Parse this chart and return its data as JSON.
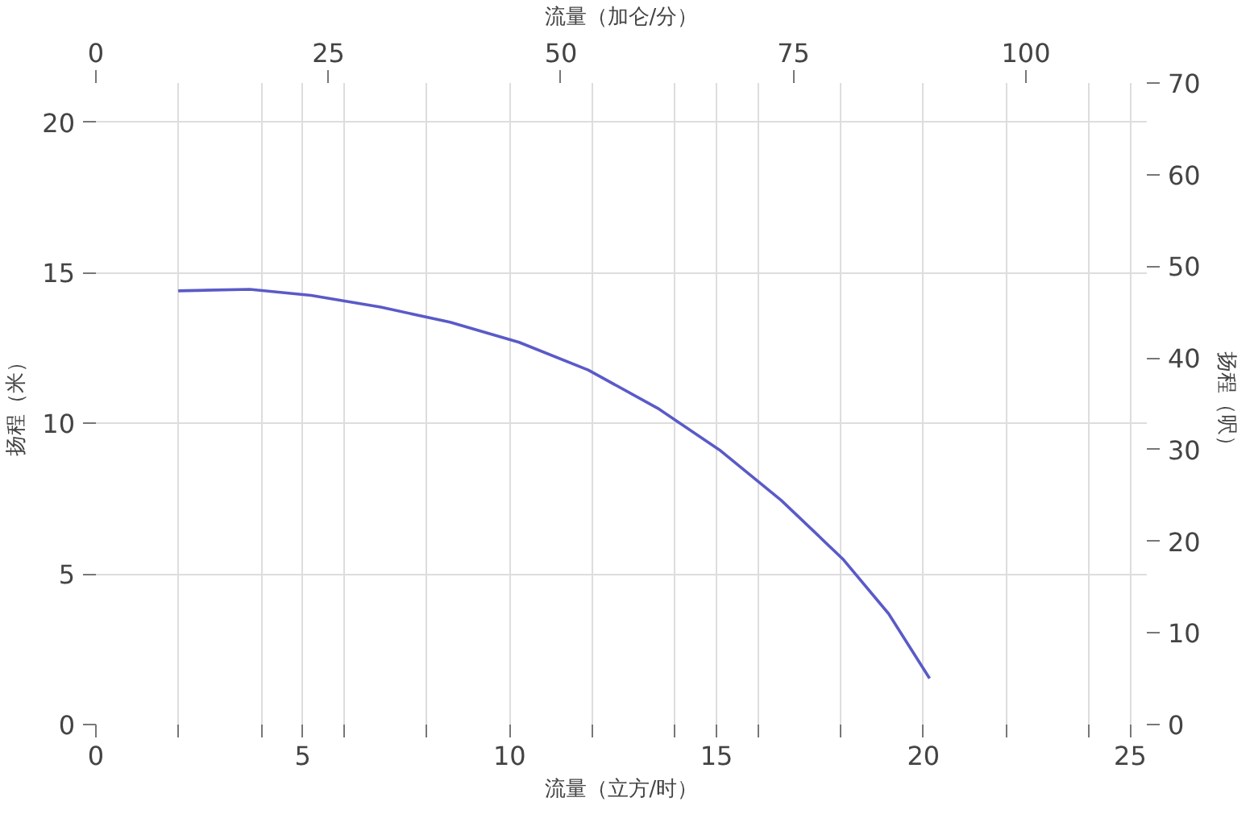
{
  "chart_data": {
    "type": "line",
    "xlabel": "流量（立方/时）",
    "x2label": "流量（加仑/分）",
    "ylabel": "扬程（米）",
    "y2label": "扬程（呎）",
    "x": [
      1.99,
      3.72,
      5.2,
      6.88,
      8.56,
      10.23,
      11.9,
      13.58,
      15.07,
      16.56,
      18.05,
      19.16,
      20.15
    ],
    "series": [
      {
        "color": "#5a5ac8",
        "values": [
          14.4,
          14.45,
          14.25,
          13.86,
          13.36,
          12.69,
          11.77,
          10.5,
          9.12,
          7.45,
          5.5,
          3.68,
          1.53
        ]
      }
    ],
    "xlim": [
      0,
      25.4
    ],
    "xticks": [
      0,
      {
        "value": 2,
        "label": null
      },
      {
        "value": 4,
        "label": null
      },
      5,
      {
        "value": 6,
        "label": null
      },
      {
        "value": 8,
        "label": null
      },
      10,
      {
        "value": 12,
        "label": null
      },
      {
        "value": 14,
        "label": null
      },
      15,
      {
        "value": 16,
        "label": null
      },
      {
        "value": 18,
        "label": null
      },
      20,
      {
        "value": 22,
        "label": null
      },
      {
        "value": 24,
        "label": null
      },
      25
    ],
    "x2lim": [
      0,
      113
    ],
    "x2ticks": [
      0,
      25,
      50,
      75,
      100
    ],
    "ylim": [
      0,
      21.3
    ],
    "yticks": [
      0,
      5,
      10,
      15,
      20
    ],
    "y2lim": [
      0,
      70
    ],
    "y2ticks": [
      0,
      10,
      20,
      30,
      40,
      50,
      60,
      70
    ],
    "grid": true,
    "marker": "none",
    "line_style": "solid"
  }
}
